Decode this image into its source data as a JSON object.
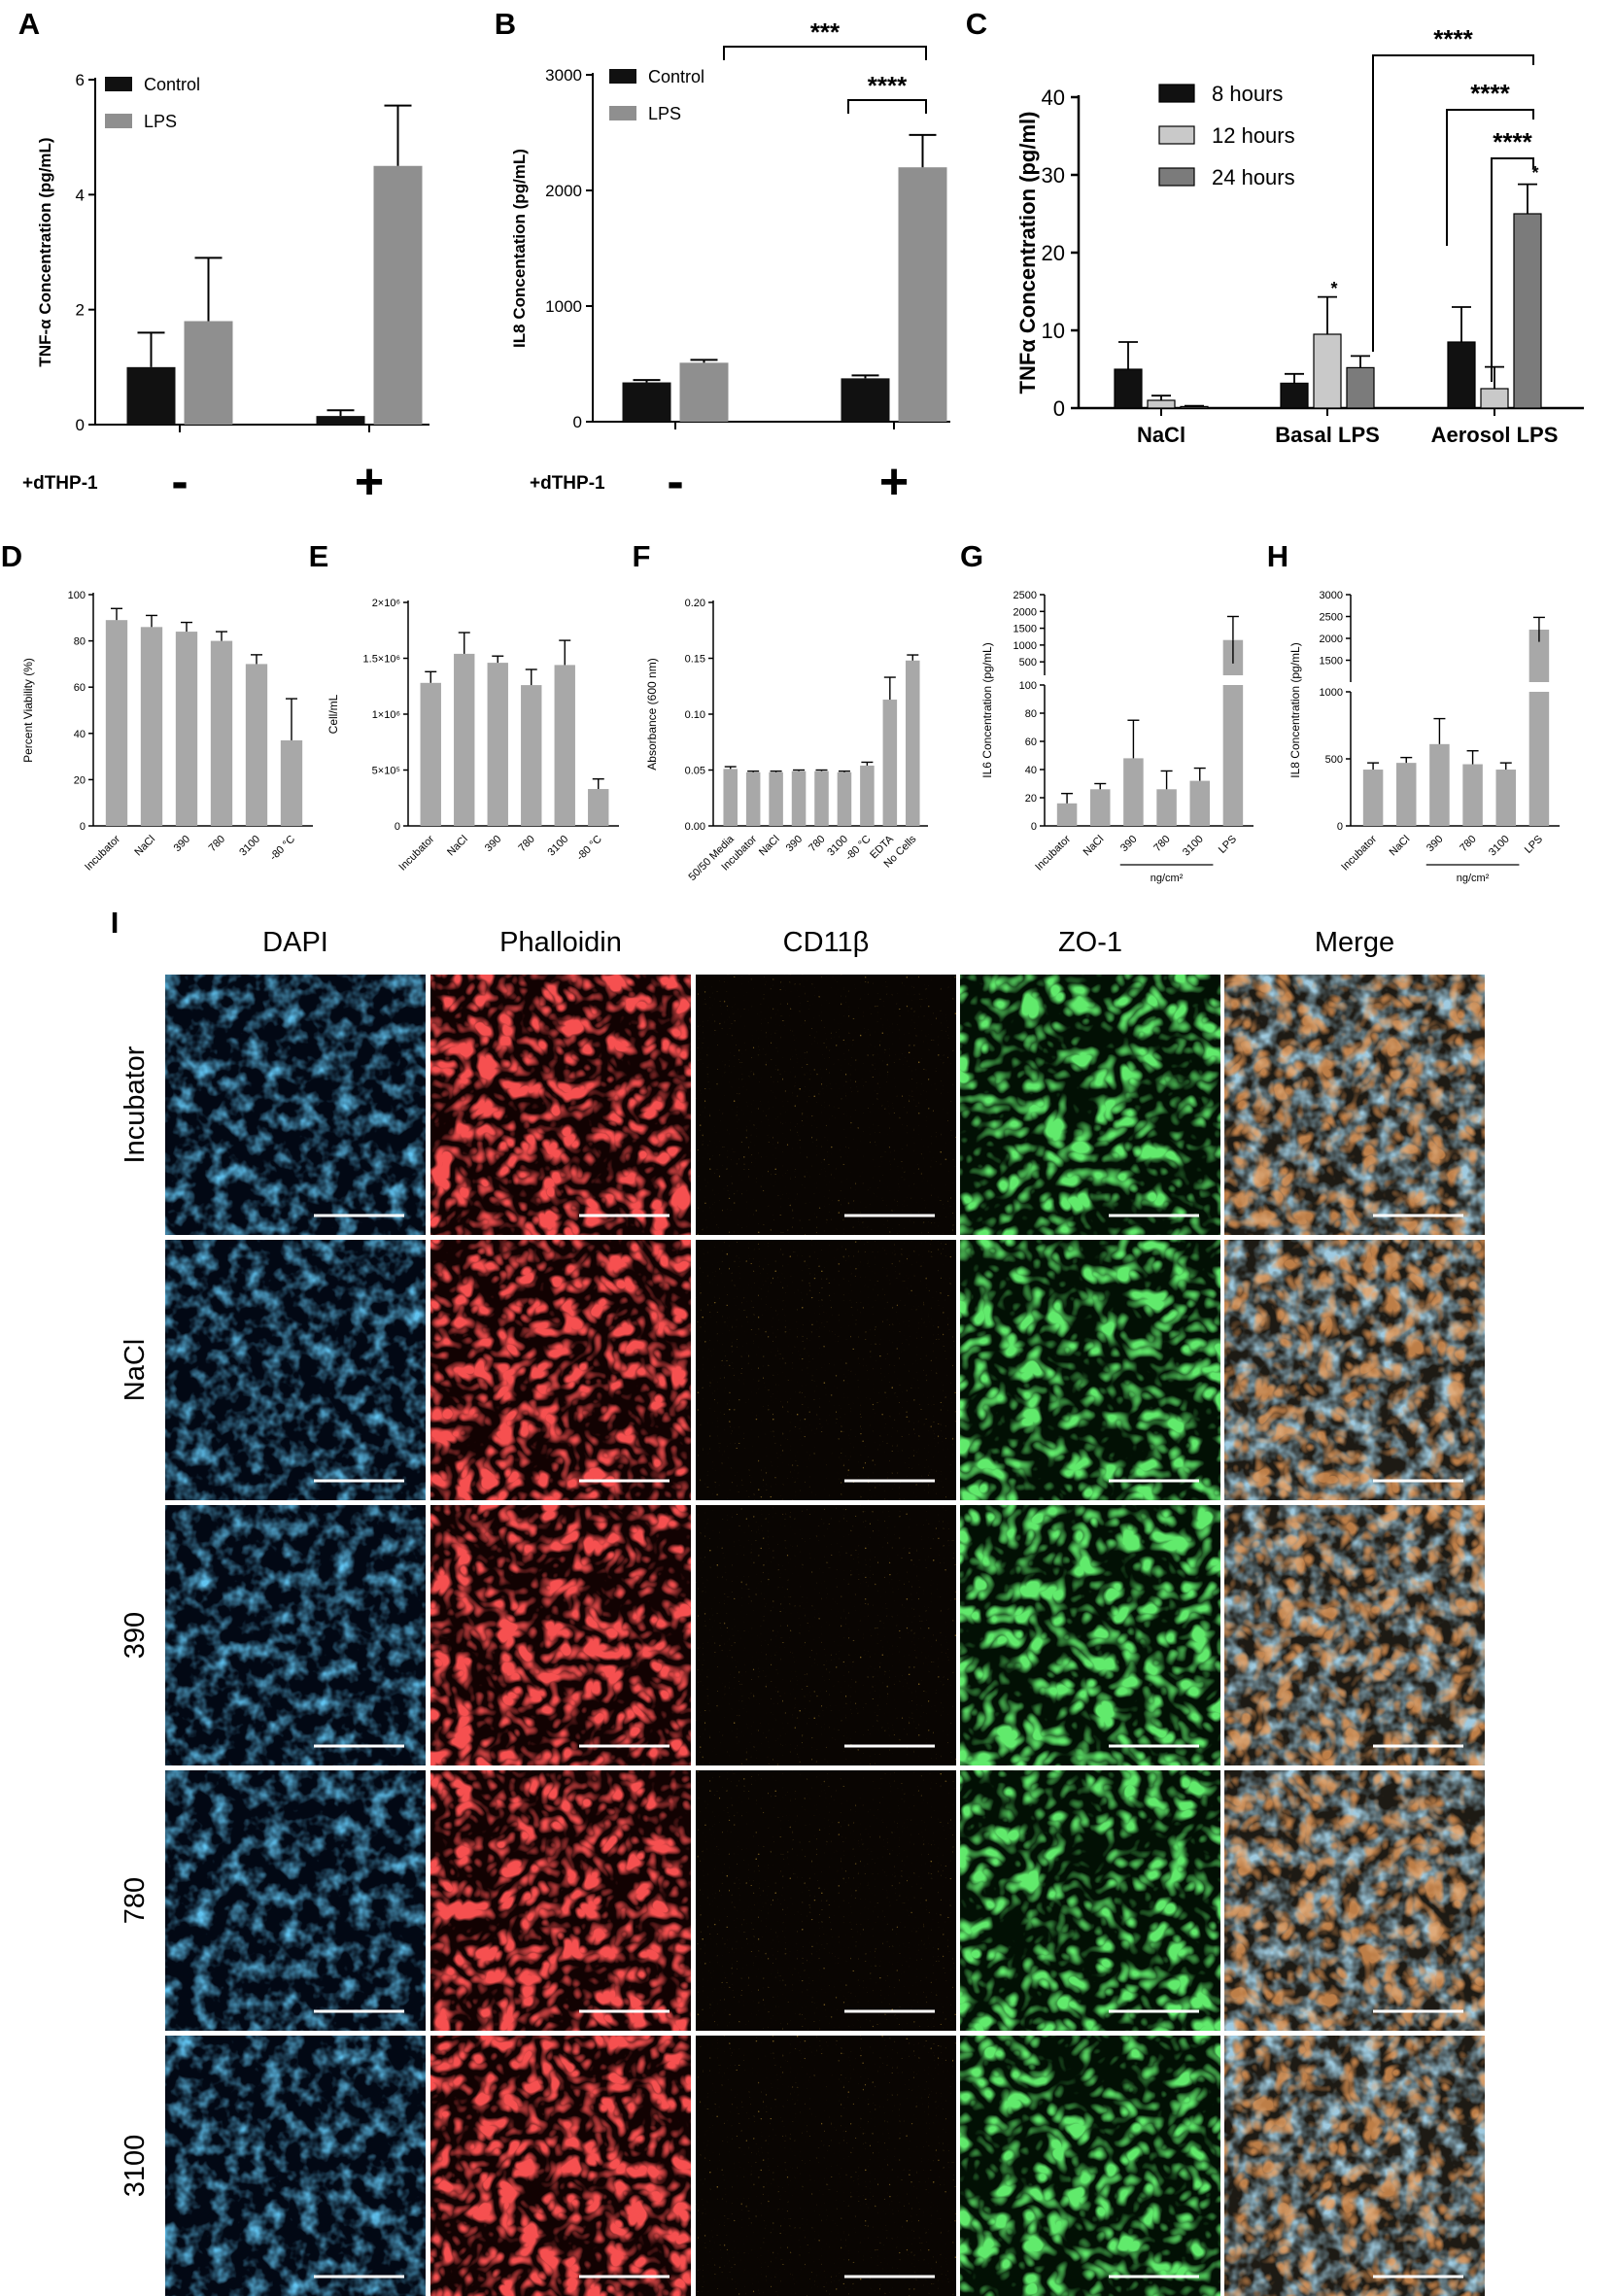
{
  "panel_labels": [
    "A",
    "B",
    "C",
    "D",
    "E",
    "F",
    "G",
    "H",
    "I"
  ],
  "colors": {
    "black": "#111111",
    "gray": "#8f8f8f",
    "lightgray": "#c9c9c9",
    "midgray": "#7b7b7b",
    "panelgray": "#a8a8a8"
  },
  "chart_data": [
    {
      "id": "A",
      "type": "bar",
      "ylabel": "TNF-α Concentration (pg/mL)",
      "ylim": [
        0,
        6
      ],
      "yticks": [
        0,
        2,
        4,
        6
      ],
      "legend": [
        "Control",
        "LPS"
      ],
      "row_label": "+dTHP-1",
      "groups": [
        "-",
        "+"
      ],
      "series": [
        {
          "name": "Control",
          "values": [
            1.0,
            0.15
          ],
          "errors": [
            0.6,
            0.1
          ]
        },
        {
          "name": "LPS",
          "values": [
            1.8,
            4.5
          ],
          "errors": [
            1.1,
            1.05
          ]
        }
      ]
    },
    {
      "id": "B",
      "type": "bar",
      "ylabel": "IL8 Concentation (pg/mL)",
      "ylim": [
        0,
        3000
      ],
      "yticks": [
        0,
        1000,
        2000,
        3000
      ],
      "legend": [
        "Control",
        "LPS"
      ],
      "row_label": "+dTHP-1",
      "groups": [
        "-",
        "+"
      ],
      "series": [
        {
          "name": "Control",
          "values": [
            340,
            375
          ],
          "errors": [
            20,
            25
          ]
        },
        {
          "name": "LPS",
          "values": [
            510,
            2200
          ],
          "errors": [
            25,
            280
          ]
        }
      ],
      "annotations": [
        "***",
        "****"
      ]
    },
    {
      "id": "C",
      "type": "bar",
      "ylabel": "TNFα  Concentration (pg/ml)",
      "ylim": [
        0,
        40
      ],
      "yticks": [
        0,
        10,
        20,
        30,
        40
      ],
      "categories": [
        "NaCl",
        "Basal LPS",
        "Aerosol LPS"
      ],
      "legend": [
        "8 hours",
        "12 hours",
        "24 hours"
      ],
      "series": [
        {
          "name": "8 hours",
          "values": [
            5.0,
            3.2,
            8.5
          ],
          "errors": [
            3.5,
            1.2,
            4.5
          ]
        },
        {
          "name": "12 hours",
          "values": [
            1.0,
            9.5,
            2.5
          ],
          "errors": [
            0.6,
            4.8,
            2.8
          ]
        },
        {
          "name": "24 hours",
          "values": [
            0.2,
            5.2,
            25.0
          ],
          "errors": [
            0.1,
            1.5,
            3.8
          ]
        }
      ],
      "annotations": [
        "****",
        "****",
        "****",
        "*",
        "*",
        "*"
      ]
    },
    {
      "id": "D",
      "type": "bar",
      "ylabel": "Percent Viability (%)",
      "ylim": [
        0,
        100
      ],
      "yticks": [
        0,
        20,
        40,
        60,
        80,
        100
      ],
      "categories": [
        "Incubator",
        "NaCl",
        "390",
        "780",
        "3100",
        "-80 °C"
      ],
      "values": [
        89,
        86,
        84,
        80,
        70,
        37
      ],
      "errors": [
        5,
        5,
        4,
        4,
        4,
        18
      ]
    },
    {
      "id": "E",
      "type": "bar",
      "ylabel": "Cell/mL",
      "ylim": [
        0,
        2000000
      ],
      "yticks": [
        0,
        500000,
        1000000,
        1500000,
        2000000
      ],
      "ytick_labels": [
        "0",
        "5×10⁵",
        "1×10⁶",
        "1.5×10⁶",
        "2×10⁶"
      ],
      "categories": [
        "Incubator",
        "NaCl",
        "390",
        "780",
        "3100",
        "-80 °C"
      ],
      "values": [
        1280000,
        1540000,
        1460000,
        1260000,
        1440000,
        330000
      ],
      "errors": [
        100000,
        190000,
        60000,
        140000,
        220000,
        90000
      ]
    },
    {
      "id": "F",
      "type": "bar",
      "ylabel": "Absorbance (600 nm)",
      "ylim": [
        0,
        0.2
      ],
      "yticks": [
        0,
        0.05,
        0.1,
        0.15,
        0.2
      ],
      "ytick_labels": [
        "0.00",
        "0.05",
        "0.10",
        "0.15",
        "0.20"
      ],
      "categories": [
        "50/50 Media",
        "Incubator",
        "NaCl",
        "390",
        "780",
        "3100",
        "-80 °C",
        "EDTA",
        "No Cells"
      ],
      "values": [
        0.051,
        0.048,
        0.048,
        0.049,
        0.049,
        0.048,
        0.054,
        0.113,
        0.148
      ],
      "errors": [
        0.002,
        0.001,
        0.001,
        0.001,
        0.001,
        0.001,
        0.003,
        0.02,
        0.005
      ]
    },
    {
      "id": "G",
      "type": "bar",
      "ylabel": "IL6 Concentration (pg/mL)",
      "lower_ylim": [
        0,
        100
      ],
      "lower_yticks": [
        0,
        20,
        40,
        60,
        80,
        100
      ],
      "upper_ylim": [
        100,
        2500
      ],
      "upper_yticks": [
        500,
        1000,
        1500,
        2000,
        2500
      ],
      "categories": [
        "Incubator",
        "NaCl",
        "390",
        "780",
        "3100",
        "LPS"
      ],
      "group_label": "ng/cm²",
      "values": [
        16,
        26,
        48,
        26,
        32,
        1150
      ],
      "errors": [
        7,
        4,
        27,
        13,
        9,
        700
      ]
    },
    {
      "id": "H",
      "type": "bar",
      "ylabel": "IL8 Concentration (pg/mL)",
      "lower_ylim": [
        0,
        1000
      ],
      "lower_yticks": [
        0,
        500,
        1000
      ],
      "upper_ylim": [
        1000,
        3000
      ],
      "upper_yticks": [
        1500,
        2000,
        2500,
        3000
      ],
      "categories": [
        "Incubator",
        "NaCl",
        "390",
        "780",
        "3100",
        "LPS"
      ],
      "group_label": "ng/cm²",
      "values": [
        420,
        470,
        610,
        460,
        420,
        2200
      ],
      "errors": [
        50,
        40,
        190,
        100,
        50,
        280
      ]
    }
  ],
  "micrograph_grid": {
    "columns": [
      "DAPI",
      "Phalloidin",
      "CD11β",
      "ZO-1",
      "Merge"
    ],
    "rows": [
      "Incubator",
      "NaCl",
      "390",
      "780",
      "3100"
    ]
  }
}
